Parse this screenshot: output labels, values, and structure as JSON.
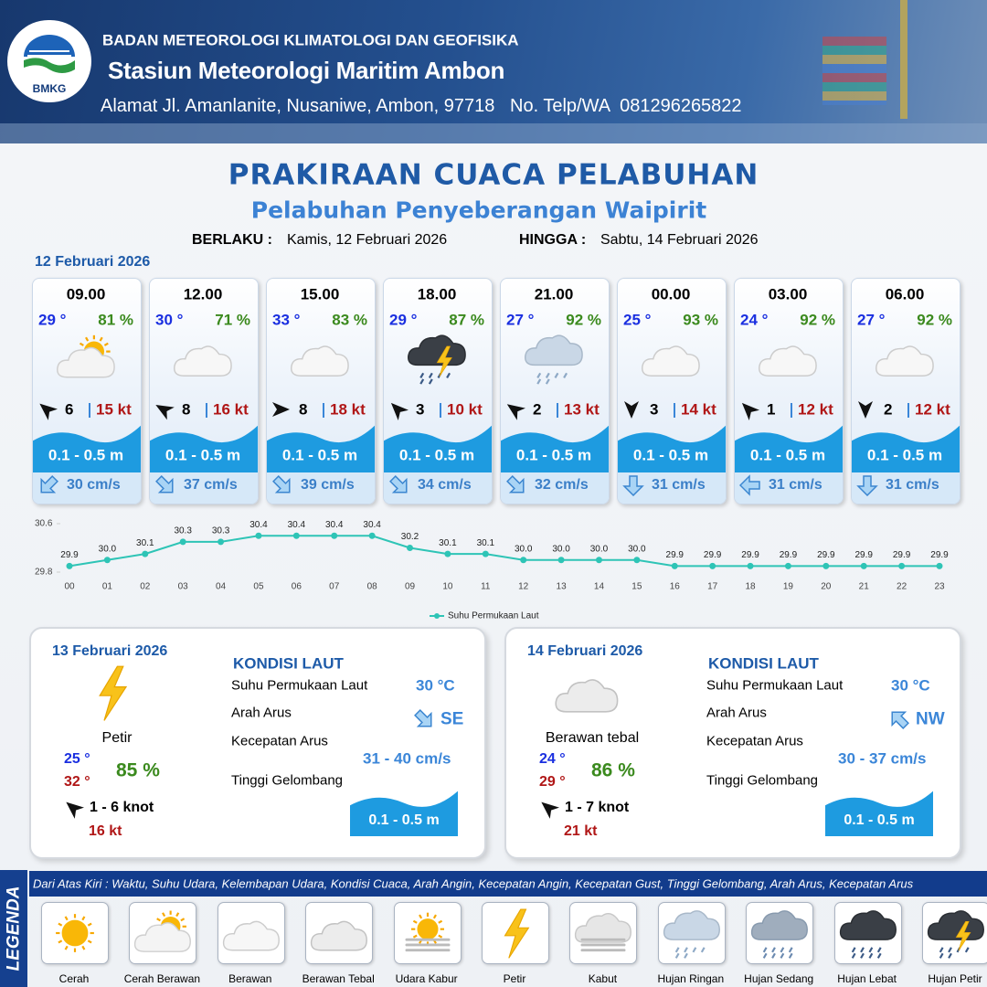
{
  "header": {
    "logo": "BMKG",
    "agency": "BADAN METEOROLOGI KLIMATOLOGI DAN GEOFISIKA",
    "station": "Stasiun Meteorologi Maritim Ambon",
    "address": "Alamat Jl. Amanlanite, Nusaniwe, Ambon, 97718   No. Telp/WA  081296265822"
  },
  "title": "PRAKIRAAN CUACA PELABUHAN",
  "subtitle": "Pelabuhan Penyeberangan Waipirit",
  "validity": {
    "from_label": "BERLAKU :",
    "from": "Kamis, 12 Februari 2026",
    "to_label": "HINGGA :",
    "to": "Sabtu, 14 Februari 2026"
  },
  "day1": {
    "date": "12 Februari 2026",
    "forecasts": [
      {
        "time": "09.00",
        "temp": "29 °",
        "humidity": "81 %",
        "wind": "6",
        "gust": "15 kt",
        "wave": "0.1 - 0.5 m",
        "current": "30 cm/s"
      },
      {
        "time": "12.00",
        "temp": "30 °",
        "humidity": "71 %",
        "wind": "8",
        "gust": "16 kt",
        "wave": "0.1 - 0.5 m",
        "current": "37 cm/s"
      },
      {
        "time": "15.00",
        "temp": "33 °",
        "humidity": "83 %",
        "wind": "8",
        "gust": "18 kt",
        "wave": "0.1 - 0.5 m",
        "current": "39 cm/s"
      },
      {
        "time": "18.00",
        "temp": "29 °",
        "humidity": "87 %",
        "wind": "3",
        "gust": "10 kt",
        "wave": "0.1 - 0.5 m",
        "current": "34 cm/s"
      },
      {
        "time": "21.00",
        "temp": "27 °",
        "humidity": "92 %",
        "wind": "2",
        "gust": "13 kt",
        "wave": "0.1 - 0.5 m",
        "current": "32 cm/s"
      },
      {
        "time": "00.00",
        "temp": "25 °",
        "humidity": "93 %",
        "wind": "3",
        "gust": "14 kt",
        "wave": "0.1 - 0.5 m",
        "current": "31 cm/s"
      },
      {
        "time": "03.00",
        "temp": "24 °",
        "humidity": "92 %",
        "wind": "1",
        "gust": "12 kt",
        "wave": "0.1 - 0.5 m",
        "current": "31 cm/s"
      },
      {
        "time": "06.00",
        "temp": "27 °",
        "humidity": "92 %",
        "wind": "2",
        "gust": "12 kt",
        "wave": "0.1 - 0.5 m",
        "current": "31 cm/s"
      }
    ]
  },
  "chart_data": {
    "type": "line",
    "categories": [
      "00",
      "01",
      "02",
      "03",
      "04",
      "05",
      "06",
      "07",
      "08",
      "09",
      "10",
      "11",
      "12",
      "13",
      "14",
      "15",
      "16",
      "17",
      "18",
      "19",
      "20",
      "21",
      "22",
      "23"
    ],
    "series": [
      {
        "name": "Suhu Permukaan Laut",
        "color": "#2ec4b6",
        "values": [
          29.9,
          30,
          30.1,
          30.3,
          30.3,
          30.4,
          30.4,
          30.4,
          30.4,
          30.2,
          30.1,
          30.1,
          30,
          30,
          30,
          30,
          29.9,
          29.9,
          29.9,
          29.9,
          29.9,
          29.9,
          29.9,
          29.9
        ],
        "value_labels": [
          "29.9",
          "30.0",
          "30.1",
          "30.3",
          "30.3",
          "30.4",
          "30.4",
          "30.4",
          "30.4",
          "30.2",
          "30.1",
          "30.1",
          "30.0",
          "30.0",
          "30.0",
          "30.0",
          "29.9",
          "29.9",
          "29.9",
          "29.9",
          "29.9",
          "29.9",
          "29.9",
          "29.9"
        ]
      }
    ],
    "ylim": [
      29.8,
      30.6
    ],
    "yticks": [
      29.8,
      30.6
    ]
  },
  "days": [
    {
      "date": "13 Februari 2026",
      "condition": "Petir",
      "temp_min": "25 °",
      "temp_max": "32 °",
      "humidity": "85 %",
      "wind": "1 - 6 knot",
      "gust": "16 kt",
      "sea": {
        "heading": "KONDISI LAUT",
        "sst_label": "Suhu Permukaan Laut",
        "sst": "30 °C",
        "dir_label": "Arah Arus",
        "dir": "SE",
        "speed_label": "Kecepatan Arus",
        "speed": "31 - 40 cm/s",
        "wave_label": "Tinggi Gelombang",
        "wave": "0.1 - 0.5 m"
      }
    },
    {
      "date": "14 Februari 2026",
      "condition": "Berawan tebal",
      "temp_min": "24 °",
      "temp_max": "29 °",
      "humidity": "86 %",
      "wind": "1 - 7 knot",
      "gust": "21 kt",
      "sea": {
        "heading": "KONDISI LAUT",
        "sst_label": "Suhu Permukaan Laut",
        "sst": "30 °C",
        "dir_label": "Arah Arus",
        "dir": "NW",
        "speed_label": "Kecepatan Arus",
        "speed": "30 - 37 cm/s",
        "wave_label": "Tinggi Gelombang",
        "wave": "0.1 - 0.5 m"
      }
    }
  ],
  "legend": {
    "title": "LEGENDA",
    "note": "Dari Atas Kiri : Waktu, Suhu Udara, Kelembapan Udara, Kondisi Cuaca, Arah Angin, Kecepatan Angin, Kecepatan Gust, Tinggi Gelombang, Arah Arus, Kecepatan Arus",
    "items": [
      "Cerah",
      "Cerah Berawan",
      "Berawan",
      "Berawan Tebal",
      "Udara Kabur",
      "Petir",
      "Kabut",
      "Hujan Ringan",
      "Hujan Sedang",
      "Hujan Lebat",
      "Hujan Petir"
    ]
  }
}
